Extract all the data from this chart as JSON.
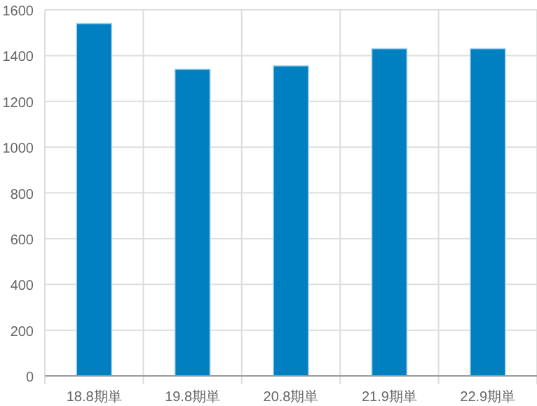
{
  "chart_data": {
    "type": "bar",
    "categories": [
      "18.8期単",
      "19.8期単",
      "20.8期単",
      "21.9期単",
      "22.9期単"
    ],
    "values": [
      1540,
      1340,
      1355,
      1430,
      1430
    ],
    "color": "#007fc1",
    "ylim": [
      0,
      1600
    ],
    "yticks": [
      0,
      200,
      400,
      600,
      800,
      1000,
      1200,
      1400,
      1600
    ],
    "grid": true
  }
}
